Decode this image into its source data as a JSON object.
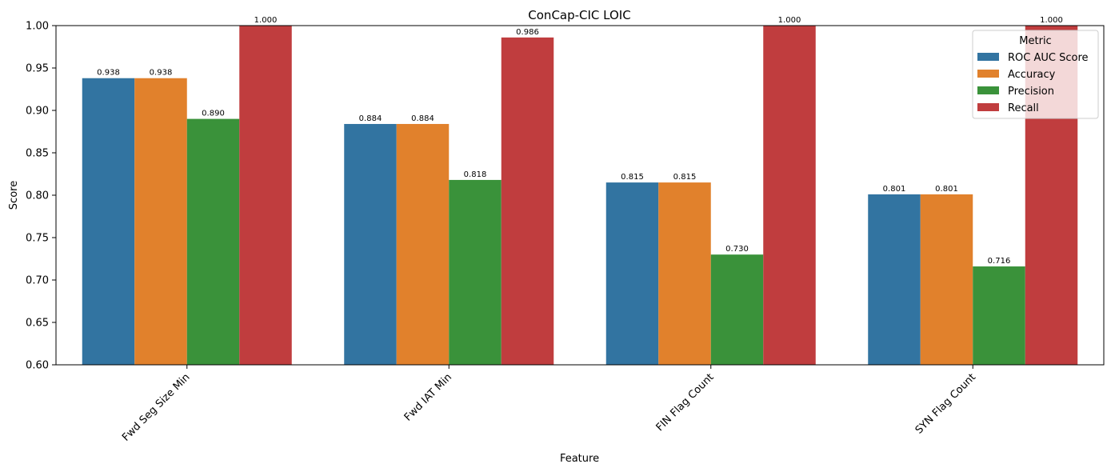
{
  "chart_data": {
    "type": "bar",
    "title": "ConCap-CIC LOIC",
    "xlabel": "Feature",
    "ylabel": "Score",
    "ylim": [
      0.6,
      1.0
    ],
    "yticks": [
      "0.60",
      "0.65",
      "0.70",
      "0.75",
      "0.80",
      "0.85",
      "0.90",
      "0.95",
      "1.00"
    ],
    "categories": [
      "Fwd Seg Size Min",
      "Fwd IAT Min",
      "FIN Flag Count",
      "SYN Flag Count"
    ],
    "legend": {
      "title": "Metric",
      "placement": "top-right"
    },
    "grid": false,
    "series": [
      {
        "name": "ROC AUC Score",
        "color": "#3274a1",
        "values": [
          0.938,
          0.884,
          0.815,
          0.801
        ],
        "labels": [
          "0.938",
          "0.884",
          "0.815",
          "0.801"
        ]
      },
      {
        "name": "Accuracy",
        "color": "#e1812c",
        "values": [
          0.938,
          0.884,
          0.815,
          0.801
        ],
        "labels": [
          "0.938",
          "0.884",
          "0.815",
          "0.801"
        ]
      },
      {
        "name": "Precision",
        "color": "#3a923a",
        "values": [
          0.89,
          0.818,
          0.73,
          0.716
        ],
        "labels": [
          "0.890",
          "0.818",
          "0.730",
          "0.716"
        ]
      },
      {
        "name": "Recall",
        "color": "#c03d3e",
        "values": [
          1.0,
          0.986,
          1.0,
          1.0
        ],
        "labels": [
          "1.000",
          "0.986",
          "1.000",
          "1.000"
        ]
      }
    ]
  }
}
